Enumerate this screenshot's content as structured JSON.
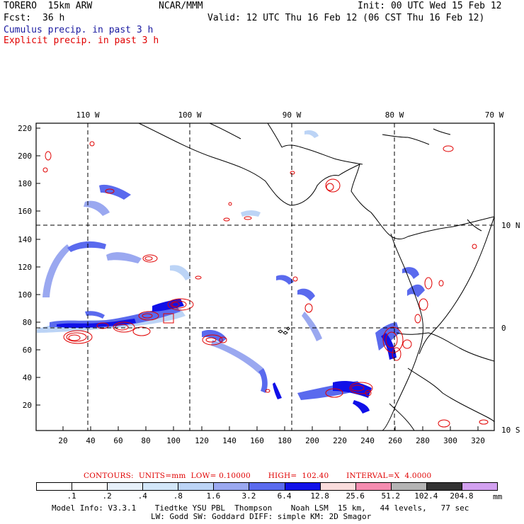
{
  "header": {
    "model": "TORERO  15km ARW",
    "org": "NCAR/MMM",
    "init": "Init: 00 UTC Wed 15 Feb 12",
    "fcst_label": "Fcst:",
    "fcst_value": "36 h",
    "valid": "Valid: 12 UTC Thu 16 Feb 12 (06 CST Thu 16 Feb 12)"
  },
  "legend": {
    "cumulus": "Cumulus precip. in past 3 h",
    "explicit": "Explicit precip. in past 3 h"
  },
  "map": {
    "lon_labels": [
      "110 W",
      "100 W",
      "90 W",
      "80 W",
      "70 W"
    ],
    "lat_labels": [
      "10 N",
      "0",
      "10 S"
    ],
    "y_ticks": [
      "220",
      "200",
      "180",
      "160",
      "140",
      "120",
      "100",
      "80",
      "60",
      "40",
      "20"
    ],
    "x_ticks": [
      "20",
      "40",
      "60",
      "80",
      "100",
      "120",
      "140",
      "160",
      "180",
      "200",
      "220",
      "240",
      "260",
      "280",
      "300",
      "320"
    ]
  },
  "contours_info": {
    "title": "CONTOURS:",
    "units": "UNITS=mm",
    "low": "LOW= 0.10000",
    "high": "HIGH=  102.40",
    "interval": "INTERVAL=X  4.0000"
  },
  "colorbar": {
    "labels": [
      ".1",
      ".2",
      ".4",
      ".8",
      "1.6",
      "3.2",
      "6.4",
      "12.8",
      "25.6",
      "51.2",
      "102.4",
      "204.8"
    ],
    "units": "mm",
    "colors": [
      "#ffffff",
      "#ffffff",
      "#e6f0fa",
      "#d2e6f8",
      "#bcd4f6",
      "#9aa8f0",
      "#5a6aee",
      "#1010e8",
      "#fadcdc",
      "#f58cb0",
      "#b4b4b4",
      "#323232",
      "#d2a0f0"
    ]
  },
  "footer": {
    "line1": "Model Info: V3.3.1    Tiedtke YSU PBL  Thompson    Noah LSM  15 km,   44 levels,   77 sec",
    "line2": "LW: Godd SW: Goddard DIFF: simple KM: 2D Smagor"
  }
}
